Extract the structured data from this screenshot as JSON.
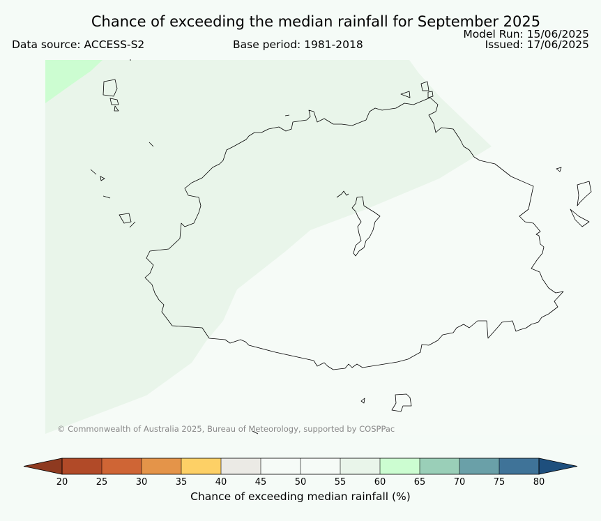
{
  "title": "Chance of exceeding the median rainfall for September 2025",
  "data_source": "Data source: ACCESS-S2",
  "base_period": "Base period: 1981-2018",
  "model_run": "Model Run: 15/06/2025",
  "issued": "Issued: 17/06/2025",
  "credit": "© Commonwealth of Australia 2025, Bureau of Meteorology, supported by COSPPac",
  "colorbar": {
    "label": "Chance of exceeding median rainfall (%)",
    "ticks": [
      "20",
      "25",
      "30",
      "35",
      "40",
      "45",
      "50",
      "55",
      "60",
      "65",
      "70",
      "75",
      "80"
    ],
    "bins": [
      {
        "range": "20-25",
        "color": "#b14a28"
      },
      {
        "range": "25-30",
        "color": "#cf6535"
      },
      {
        "range": "30-35",
        "color": "#e49449"
      },
      {
        "range": "35-40",
        "color": "#fdd066"
      },
      {
        "range": "40-45",
        "color": "#ebeae5"
      },
      {
        "range": "45-50",
        "color": "#f6fbf7"
      },
      {
        "range": "50-55",
        "color": "#f6fbf7"
      },
      {
        "range": "55-60",
        "color": "#e9f5ea"
      },
      {
        "range": "60-65",
        "color": "#ccfdd1"
      },
      {
        "range": "65-70",
        "color": "#9acfb8"
      },
      {
        "range": "70-75",
        "color": "#6aa0a8"
      },
      {
        "range": "75-80",
        "color": "#3f7398"
      }
    ],
    "under_color": "#8e3a20",
    "over_color": "#1e4f7d"
  },
  "map_fill": {
    "region_55_60_color": "#e9f5ea",
    "region_60_65_color": "#ccfdd1",
    "default_color": "#f6fbf7"
  }
}
